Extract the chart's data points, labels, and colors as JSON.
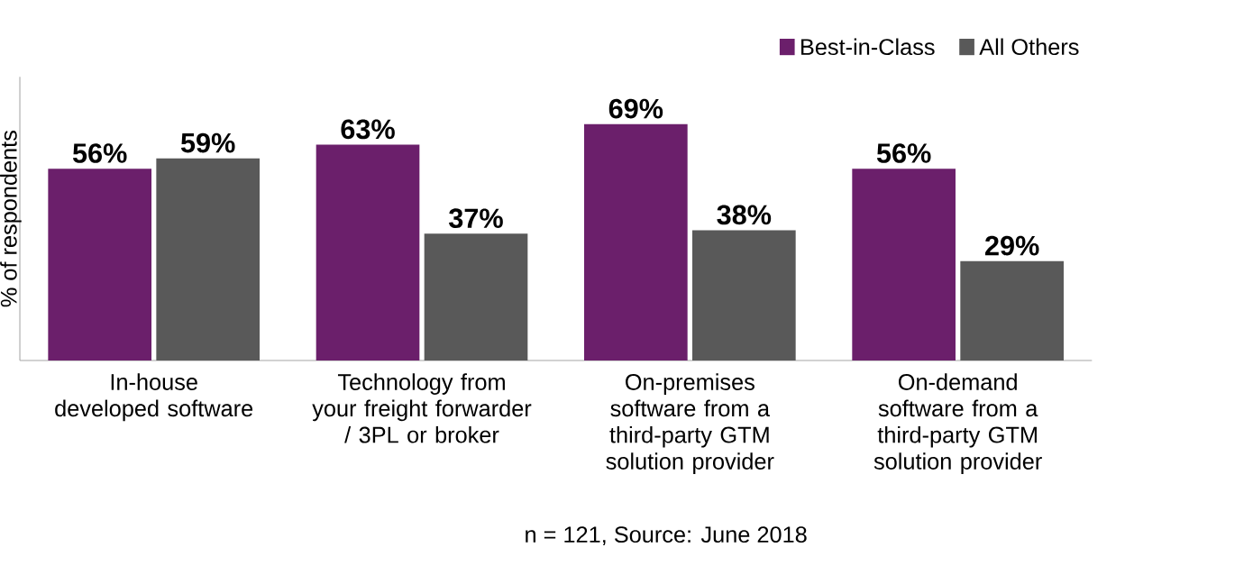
{
  "chart_data": {
    "type": "bar",
    "categories": [
      "In-house developed software",
      "Technology from your freight forwarder / 3PL or broker",
      "On-premises software from a third-party GTM solution provider",
      "On-demand software from a third-party GTM solution provider"
    ],
    "series": [
      {
        "name": "Best-in-Class",
        "color": "#6b1f6b",
        "values": [
          56,
          63,
          69,
          56
        ],
        "value_labels": [
          "56%",
          "63%",
          "69%",
          "56%"
        ]
      },
      {
        "name": "All Others",
        "color": "#595959",
        "values": [
          59,
          37,
          38,
          29
        ],
        "value_labels": [
          "59%",
          "37%",
          "38%",
          "29%"
        ]
      }
    ],
    "ylabel": "% of respondents",
    "annotations": [
      "n = 121, Source: June 2018"
    ],
    "legend": "top right",
    "grid": false
  }
}
